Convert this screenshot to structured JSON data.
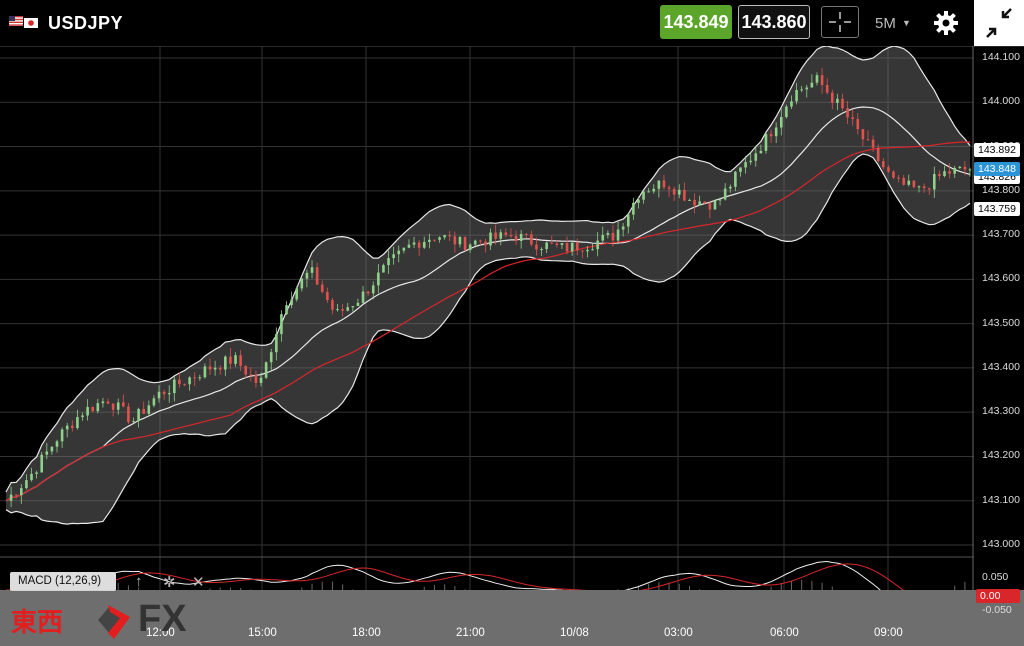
{
  "header": {
    "pair": "USDJPY",
    "sell_price": "143.849",
    "buy_price": "143.860",
    "timeframe": "5M"
  },
  "axis": {
    "y_ticks": [
      "144.100",
      "144.000",
      "143.900",
      "143.800",
      "143.700",
      "143.600",
      "143.500",
      "143.400",
      "143.300",
      "143.200",
      "143.100",
      "143.000"
    ],
    "macd_ticks": [
      "0.050",
      "-0.050"
    ],
    "x_ticks": [
      "12:00",
      "15:00",
      "18:00",
      "21:00",
      "10/08",
      "03:00",
      "06:00",
      "09:00"
    ]
  },
  "price_labels": {
    "upper_band": "143.892",
    "mid_band": "143.826",
    "current": "143.848",
    "lower_band": "143.759",
    "macd_value": "0.00"
  },
  "indicator": {
    "macd_label": "MACD (12,26,9)"
  },
  "logo": {
    "kanji": "東西",
    "fx": "FX"
  },
  "colors": {
    "bull": "#8fd18a",
    "bear": "#e0524e",
    "band": "#e8e8e8",
    "ma": "#d8262b",
    "sell_bg": "#5aa52a",
    "current_price": "#2a94d6"
  },
  "chart_data": {
    "type": "candlestick",
    "symbol": "USDJPY",
    "timeframe": "5M",
    "y_range": [
      143.0,
      144.1
    ],
    "x_labels": [
      "12:00",
      "15:00",
      "18:00",
      "21:00",
      "10/08",
      "03:00",
      "06:00",
      "09:00"
    ],
    "close_series": [
      143.1,
      143.16,
      143.24,
      143.3,
      143.33,
      143.28,
      143.34,
      143.37,
      143.4,
      143.42,
      143.36,
      143.55,
      143.62,
      143.52,
      143.56,
      143.63,
      143.68,
      143.7,
      143.68,
      143.69,
      143.7,
      143.68,
      143.67,
      143.68,
      143.7,
      143.8,
      143.82,
      143.78,
      143.77,
      143.85,
      143.92,
      144.02,
      144.05,
      143.98,
      143.9,
      143.82,
      143.8,
      143.84,
      143.85
    ],
    "indicators": [
      "Bollinger Bands (20,2)",
      "Moving Average",
      "MACD (12,26,9)"
    ]
  }
}
